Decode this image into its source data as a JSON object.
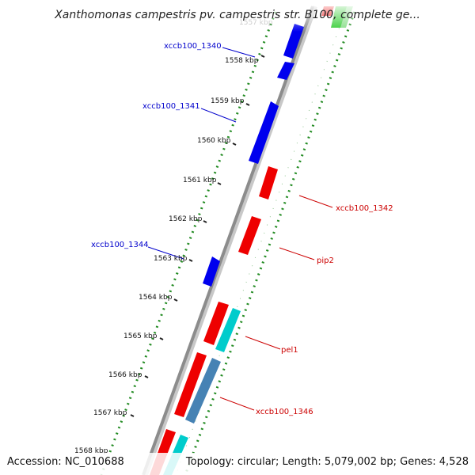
{
  "title": "Xanthomonas campestris pv. campestris str. B100, complete ge...",
  "footer": {
    "accession": "Accession: NC_010688",
    "topology": "Topology: circular; Length: 5,079,002 bp; Genes: 4,528"
  },
  "ticks": [
    {
      "label": "1557 kbp",
      "faded": true
    },
    {
      "label": "1558 kbp"
    },
    {
      "label": "1559 kbp"
    },
    {
      "label": "1560 kbp"
    },
    {
      "label": "1561 kbp"
    },
    {
      "label": "1562 kbp"
    },
    {
      "label": "1563 kbp"
    },
    {
      "label": "1564 kbp"
    },
    {
      "label": "1565 kbp"
    },
    {
      "label": "1566 kbp"
    },
    {
      "label": "1567 kbp"
    },
    {
      "label": "1568 kbp"
    }
  ],
  "gene_labels": [
    {
      "text": "xccb100_1340",
      "color": "#0000cc"
    },
    {
      "text": "xccb100_1341",
      "color": "#0000cc"
    },
    {
      "text": "xccb100_1342",
      "color": "#cc0000"
    },
    {
      "text": "xccb100_1344",
      "color": "#0000cc"
    },
    {
      "text": "pip2",
      "color": "#cc0000"
    },
    {
      "text": "pel1",
      "color": "#cc0000"
    },
    {
      "text": "xccb100_1346",
      "color": "#cc0000"
    }
  ],
  "colors": {
    "forward_gene": "#0000ee",
    "reverse_gene": "#ee0000",
    "rna_gene": "#00cccc",
    "other_gene": "#4682b4",
    "backbone": "#8c8c8c",
    "dotted_track": "#228b22",
    "gc_track": "#33cc33"
  }
}
